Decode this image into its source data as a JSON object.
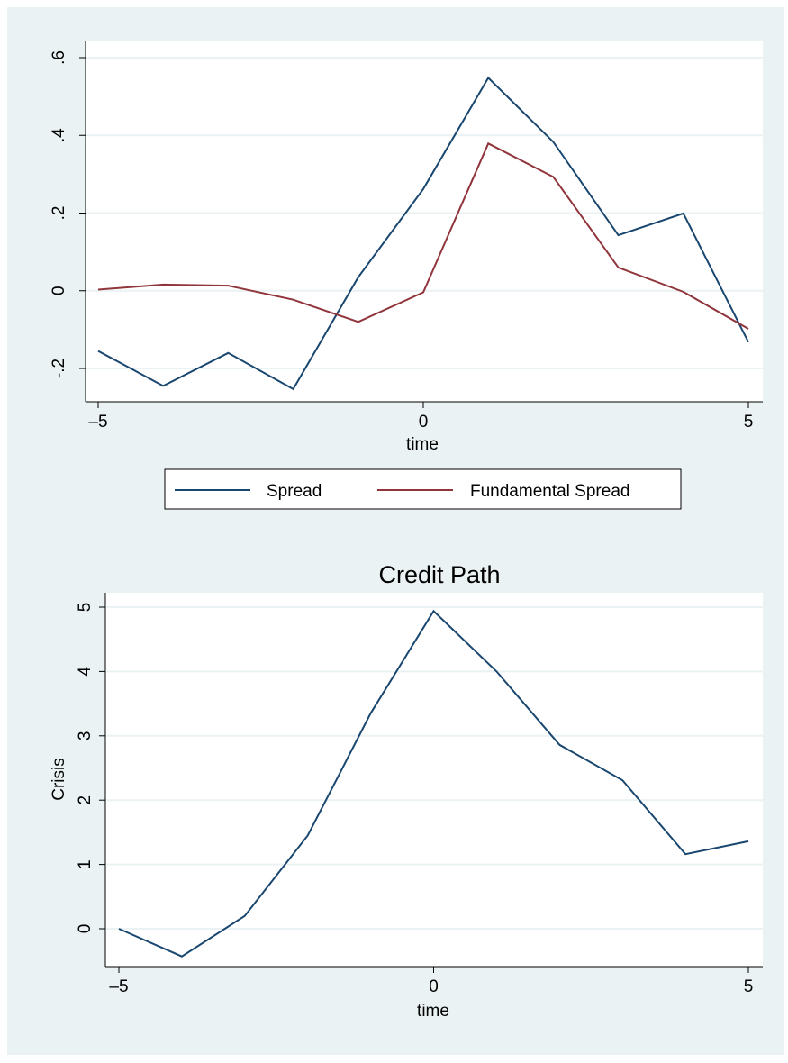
{
  "colors": {
    "outer_background": "#eaf2f3",
    "plot_background": "#ffffff",
    "grid": "#eaf2f3",
    "axis": "#000000",
    "title": "#1a476f",
    "series_blue": "#1a476f",
    "series_red": "#90353b"
  },
  "chart_data": [
    {
      "type": "line",
      "title": "",
      "xlabel": "time",
      "ylabel": "",
      "x": [
        -5,
        -4,
        -3,
        -2,
        -1,
        0,
        1,
        2,
        3,
        4,
        5
      ],
      "xlim": [
        -5,
        5
      ],
      "ylim": [
        -0.28,
        0.64
      ],
      "x_ticks": [
        -5,
        0,
        5
      ],
      "x_tick_labels": [
        "–5",
        "0",
        "5"
      ],
      "y_ticks": [
        -0.2,
        0,
        0.2,
        0.4,
        0.6
      ],
      "y_tick_labels": [
        "-.2",
        "0",
        ".2",
        ".4",
        ".6"
      ],
      "grid": true,
      "legend_position": "bottom",
      "series": [
        {
          "name": "Spread",
          "color": "#1a476f",
          "values": [
            -0.155,
            -0.245,
            -0.16,
            -0.253,
            0.035,
            0.262,
            0.548,
            0.383,
            0.143,
            0.199,
            -0.132
          ]
        },
        {
          "name": "Fundamental Spread",
          "color": "#90353b",
          "values": [
            0.003,
            0.016,
            0.013,
            -0.023,
            -0.08,
            -0.004,
            0.379,
            0.293,
            0.06,
            -0.003,
            -0.098
          ]
        }
      ]
    },
    {
      "type": "line",
      "title": "Credit Path",
      "xlabel": "time",
      "ylabel": "Crisis",
      "x": [
        -5,
        -4,
        -3,
        -2,
        -1,
        0,
        1,
        2,
        3,
        4,
        5
      ],
      "xlim": [
        -5,
        5
      ],
      "ylim": [
        -0.55,
        5.2
      ],
      "x_ticks": [
        -5,
        0,
        5
      ],
      "x_tick_labels": [
        "–5",
        "0",
        "5"
      ],
      "y_ticks": [
        0,
        1,
        2,
        3,
        4,
        5
      ],
      "y_tick_labels": [
        "0",
        "1",
        "2",
        "3",
        "4",
        "5"
      ],
      "grid": true,
      "legend_position": "none",
      "series": [
        {
          "color": "#1a476f",
          "values": [
            0.0,
            -0.43,
            0.2,
            1.45,
            3.35,
            4.94,
            4.0,
            2.86,
            2.31,
            1.16,
            1.36
          ]
        }
      ]
    }
  ]
}
